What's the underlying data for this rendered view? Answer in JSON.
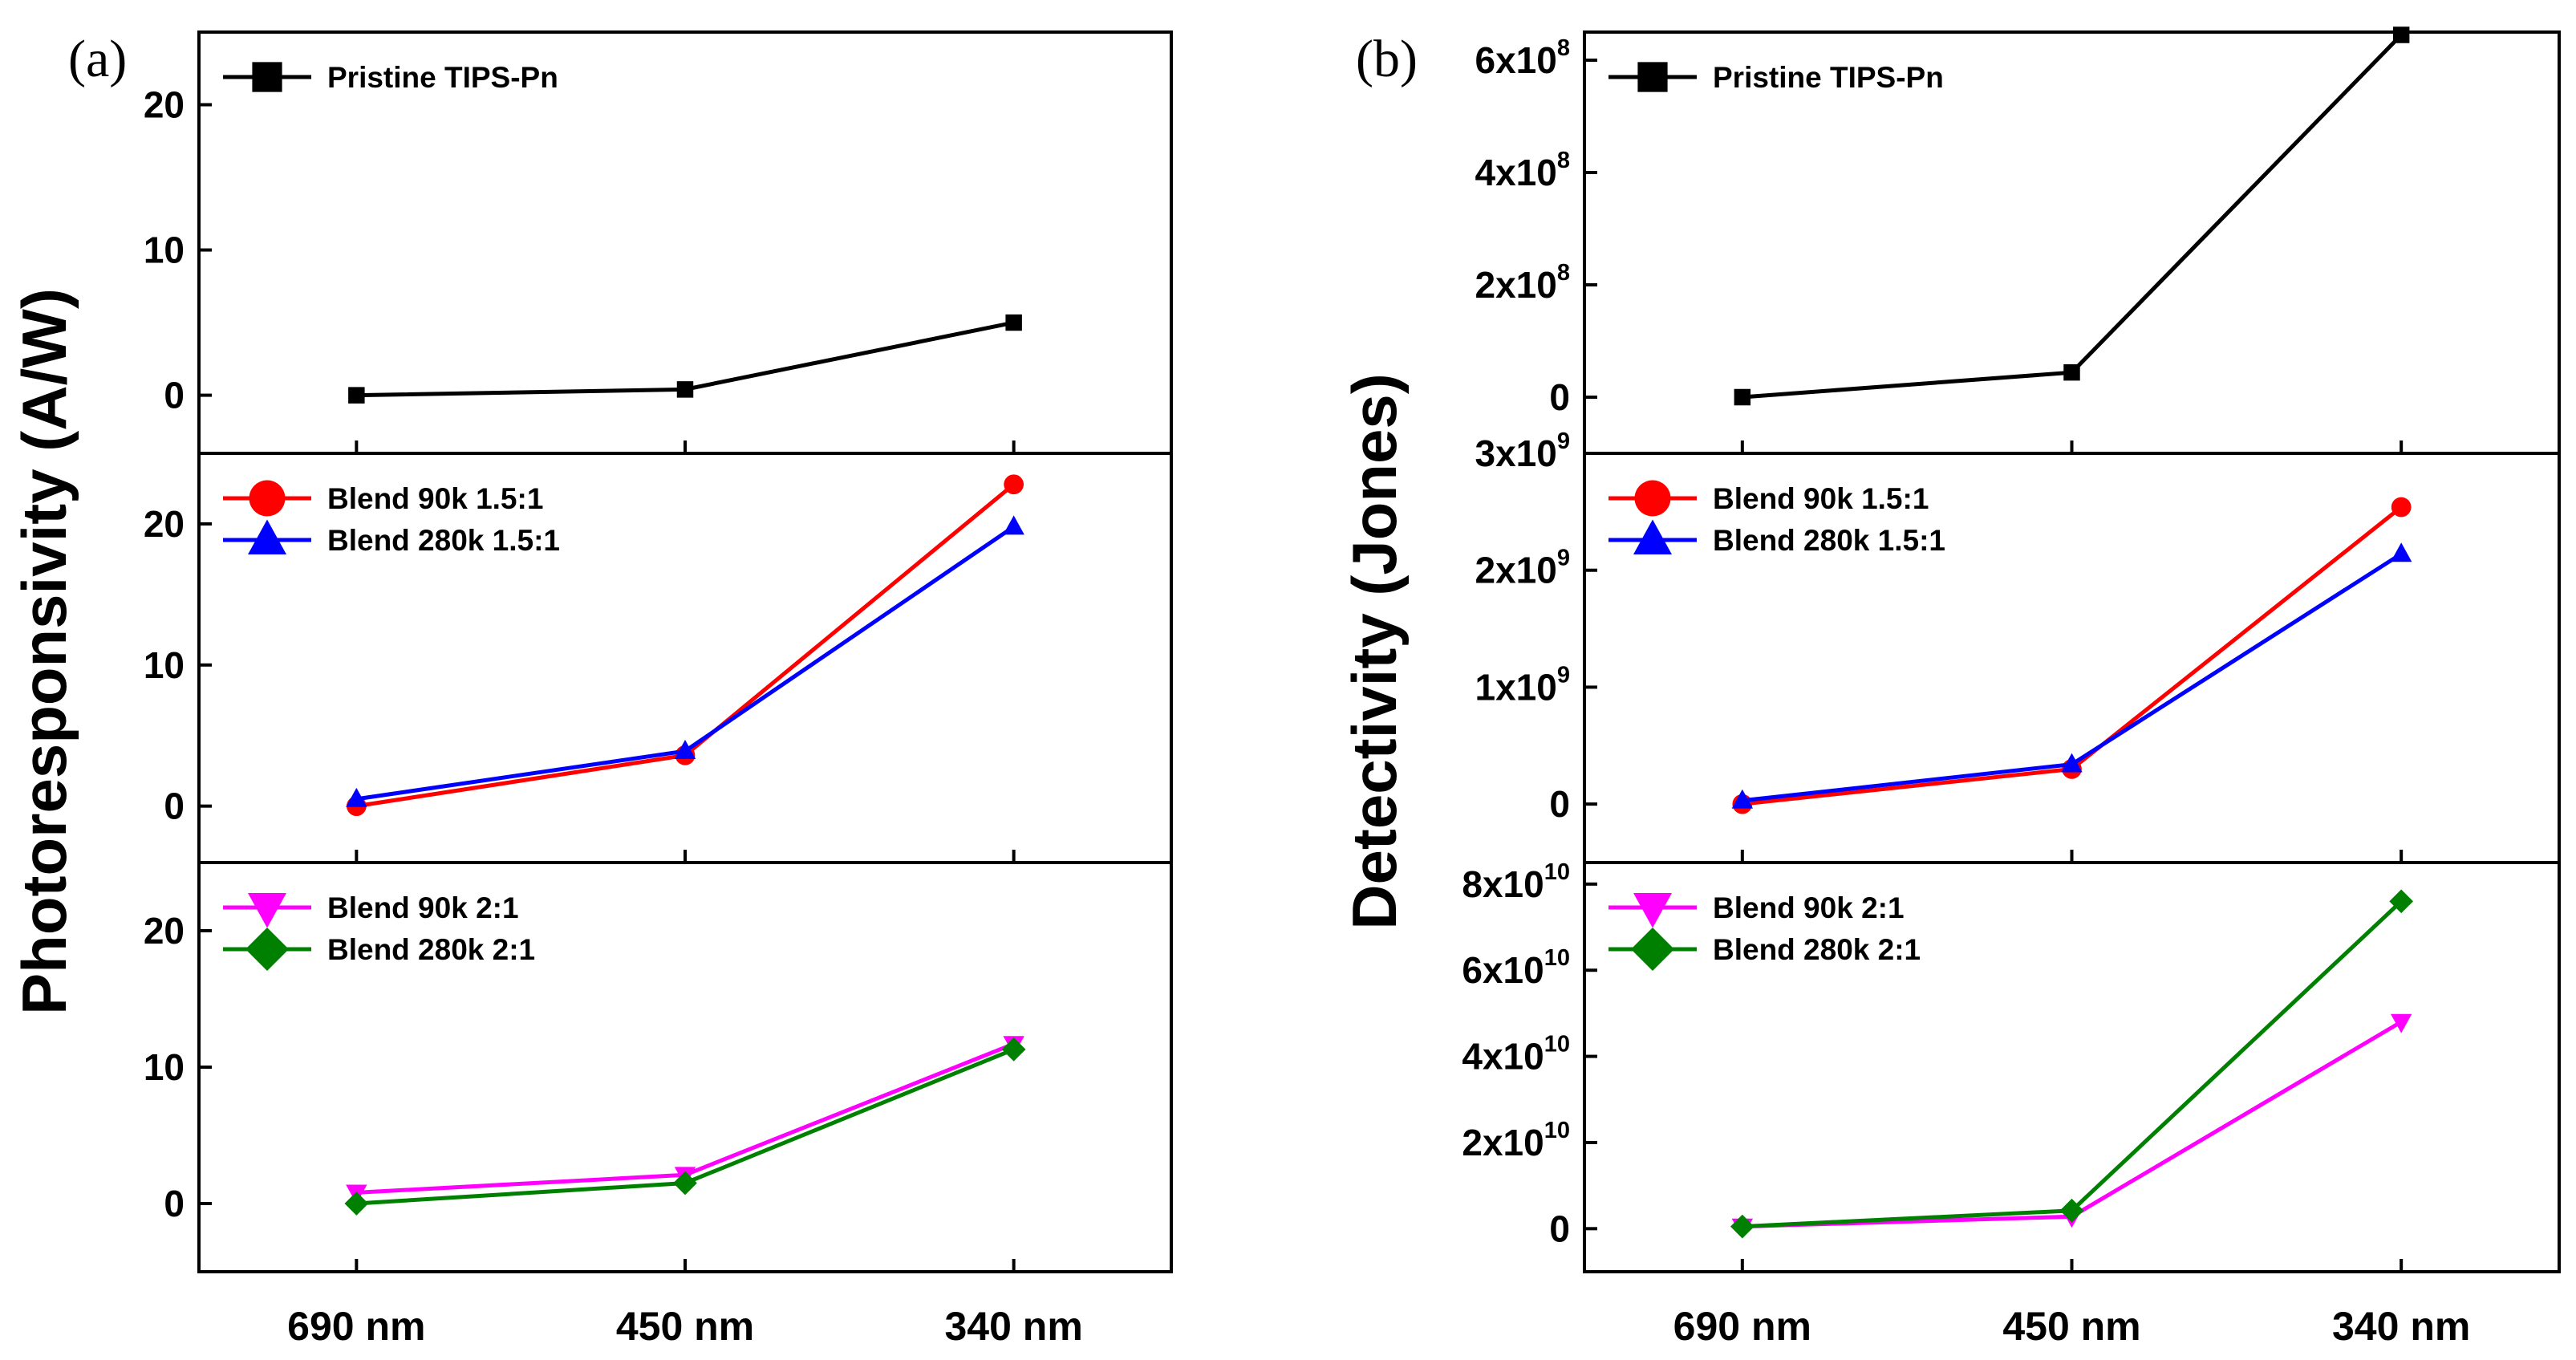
{
  "chart_data": [
    {
      "type": "line",
      "panel_label": "(a)",
      "ylabel": "Photoresponsivity (A/W)",
      "categories": [
        "690 nm",
        "450 nm",
        "340 nm"
      ],
      "subplots": [
        {
          "ylim": [
            -4,
            25
          ],
          "yticks": [
            {
              "value": 0,
              "label": "0"
            },
            {
              "value": 10,
              "label": "10"
            },
            {
              "value": 20,
              "label": "20"
            }
          ],
          "series": [
            {
              "name": "Pristine TIPS-Pn",
              "color": "#000000",
              "marker": "square",
              "values": [
                0.0,
                0.4,
                5.0
              ]
            }
          ]
        },
        {
          "ylim": [
            -4,
            25
          ],
          "yticks": [
            {
              "value": 0,
              "label": "0"
            },
            {
              "value": 10,
              "label": "10"
            },
            {
              "value": 20,
              "label": "20"
            }
          ],
          "series": [
            {
              "name": "Blend 90k 1.5:1",
              "color": "#ff0000",
              "marker": "circle",
              "values": [
                0.0,
                3.6,
                22.8
              ]
            },
            {
              "name": "Blend 280k 1.5:1",
              "color": "#0000ff",
              "marker": "triangle-up",
              "values": [
                0.5,
                3.9,
                19.8
              ]
            }
          ]
        },
        {
          "ylim": [
            -5,
            25
          ],
          "yticks": [
            {
              "value": 0,
              "label": "0"
            },
            {
              "value": 10,
              "label": "10"
            },
            {
              "value": 20,
              "label": "20"
            }
          ],
          "series": [
            {
              "name": "Blend 90k 2:1",
              "color": "#ff00ff",
              "marker": "triangle-down",
              "values": [
                0.8,
                2.1,
                11.7
              ]
            },
            {
              "name": "Blend 280k 2:1",
              "color": "#008000",
              "marker": "diamond",
              "values": [
                0.0,
                1.5,
                11.3
              ]
            }
          ]
        }
      ]
    },
    {
      "type": "line",
      "panel_label": "(b)",
      "ylabel": "Detectivity (Jones)",
      "categories": [
        "690 nm",
        "450 nm",
        "340 nm"
      ],
      "subplots": [
        {
          "ylim": [
            -100000000.0,
            650000000.0
          ],
          "yticks": [
            {
              "value": 0,
              "label": "0"
            },
            {
              "value": 200000000.0,
              "label": "2x10",
              "exp": "8"
            },
            {
              "value": 400000000.0,
              "label": "4x10",
              "exp": "8"
            },
            {
              "value": 600000000.0,
              "label": "6x10",
              "exp": "8"
            }
          ],
          "series": [
            {
              "name": "Pristine TIPS-Pn",
              "color": "#000000",
              "marker": "square",
              "values": [
                0,
                44000000.0,
                645000000.0
              ]
            }
          ]
        },
        {
          "ylim": [
            -500000000.0,
            3000000000.0
          ],
          "yticks": [
            {
              "value": 0,
              "label": "0"
            },
            {
              "value": 1000000000.0,
              "label": "1x10",
              "exp": "9"
            },
            {
              "value": 2000000000.0,
              "label": "2x10",
              "exp": "9"
            },
            {
              "value": 3000000000.0,
              "label": "3x10",
              "exp": "9"
            }
          ],
          "series": [
            {
              "name": "Blend 90k 1.5:1",
              "color": "#ff0000",
              "marker": "circle",
              "values": [
                0,
                300000000.0,
                2540000000.0
              ]
            },
            {
              "name": "Blend 280k 1.5:1",
              "color": "#0000ff",
              "marker": "triangle-up",
              "values": [
                30000000.0,
                340000000.0,
                2140000000.0
              ]
            }
          ]
        },
        {
          "ylim": [
            -10000000000.0,
            85000000000.0
          ],
          "yticks": [
            {
              "value": 0,
              "label": "0"
            },
            {
              "value": 20000000000.0,
              "label": "2x10",
              "exp": "10"
            },
            {
              "value": 40000000000.0,
              "label": "4x10",
              "exp": "10"
            },
            {
              "value": 60000000000.0,
              "label": "6x10",
              "exp": "10"
            },
            {
              "value": 80000000000.0,
              "label": "8x10",
              "exp": "10"
            }
          ],
          "series": [
            {
              "name": "Blend 90k 2:1",
              "color": "#ff00ff",
              "marker": "triangle-down",
              "values": [
                500000000.0,
                2800000000.0,
                48000000000.0
              ]
            },
            {
              "name": "Blend 280k 2:1",
              "color": "#008000",
              "marker": "diamond",
              "values": [
                500000000.0,
                4200000000.0,
                76000000000.0
              ]
            }
          ]
        }
      ]
    }
  ]
}
